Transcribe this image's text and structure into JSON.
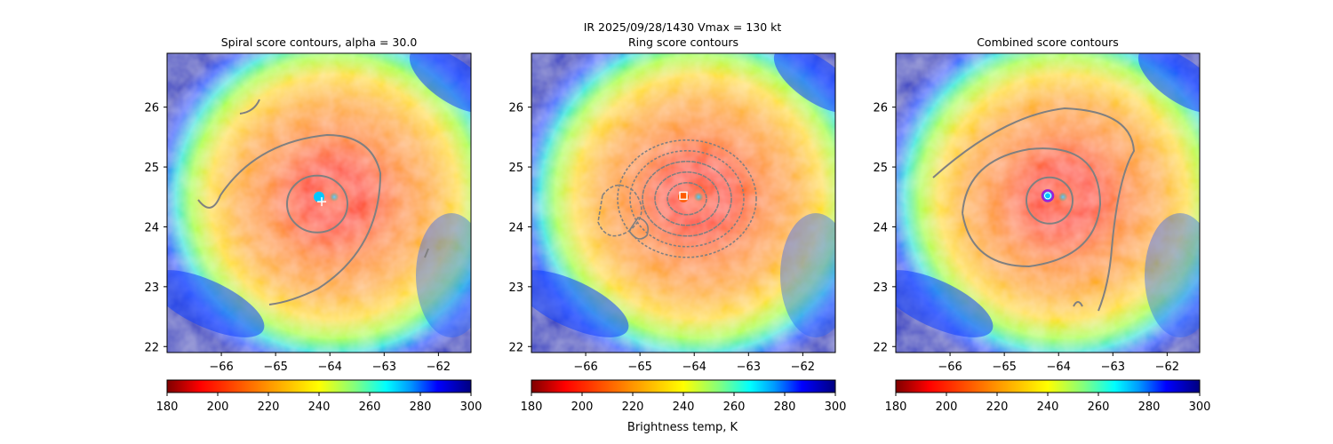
{
  "figure": {
    "suptitle_line1": "IR  2025/09/28/1430    Vmax = 130 kt",
    "colorbar_label": "Brightness temp, K"
  },
  "chart_data": [
    {
      "type": "heatmap",
      "title": "Spiral score contours, alpha = 30.0",
      "xlim": [
        -67.0,
        -61.4
      ],
      "ylim": [
        21.9,
        26.9
      ],
      "xticks": [
        -66,
        -65,
        -64,
        -63,
        -62
      ],
      "yticks": [
        22,
        23,
        24,
        25,
        26
      ],
      "field": "IR brightness temperature (K)",
      "center": {
        "lon": -64.2,
        "lat": 24.5
      },
      "contours": [
        "spiral outer band",
        "inner spiral ring"
      ],
      "markers": [
        {
          "lon": -64.15,
          "lat": 24.42,
          "symbol": "+",
          "color": "#ffffff"
        }
      ],
      "colorbar": {
        "min": 180,
        "max": 300,
        "ticks": [
          180,
          200,
          220,
          240,
          260,
          280,
          300
        ],
        "colormap": "jet_r"
      }
    },
    {
      "type": "heatmap",
      "title": "Ring score contours",
      "xlim": [
        -67.0,
        -61.4
      ],
      "ylim": [
        21.9,
        26.9
      ],
      "xticks": [
        -66,
        -65,
        -64,
        -63,
        -62
      ],
      "yticks": [
        22,
        23,
        24,
        25,
        26
      ],
      "field": "IR brightness temperature (K)",
      "center": {
        "lon": -64.2,
        "lat": 24.5
      },
      "contours": [
        "ring score (multiple levels)"
      ],
      "markers": [
        {
          "lon": -64.2,
          "lat": 24.52,
          "symbol": "square",
          "color": "#ffffff"
        }
      ],
      "colorbar": {
        "min": 180,
        "max": 300,
        "ticks": [
          180,
          200,
          220,
          240,
          260,
          280,
          300
        ],
        "colormap": "jet_r"
      }
    },
    {
      "type": "heatmap",
      "title": "Combined score contours",
      "xlim": [
        -67.0,
        -61.4
      ],
      "ylim": [
        21.9,
        26.9
      ],
      "xticks": [
        -66,
        -65,
        -64,
        -63,
        -62
      ],
      "yticks": [
        22,
        23,
        24,
        25,
        26
      ],
      "field": "IR brightness temperature (K)",
      "center": {
        "lon": -64.2,
        "lat": 24.5
      },
      "contours": [
        "combined outer",
        "combined middle",
        "combined inner"
      ],
      "markers": [
        {
          "lon": -64.2,
          "lat": 24.52,
          "symbol": "circle",
          "color": "#9b1fd6"
        }
      ],
      "colorbar": {
        "min": 180,
        "max": 300,
        "ticks": [
          180,
          200,
          220,
          240,
          260,
          280,
          300
        ],
        "colormap": "jet_r"
      }
    }
  ],
  "colors": {
    "contour": "#808080",
    "marker_purple": "#9b1fd6",
    "marker_white": "#ffffff"
  }
}
